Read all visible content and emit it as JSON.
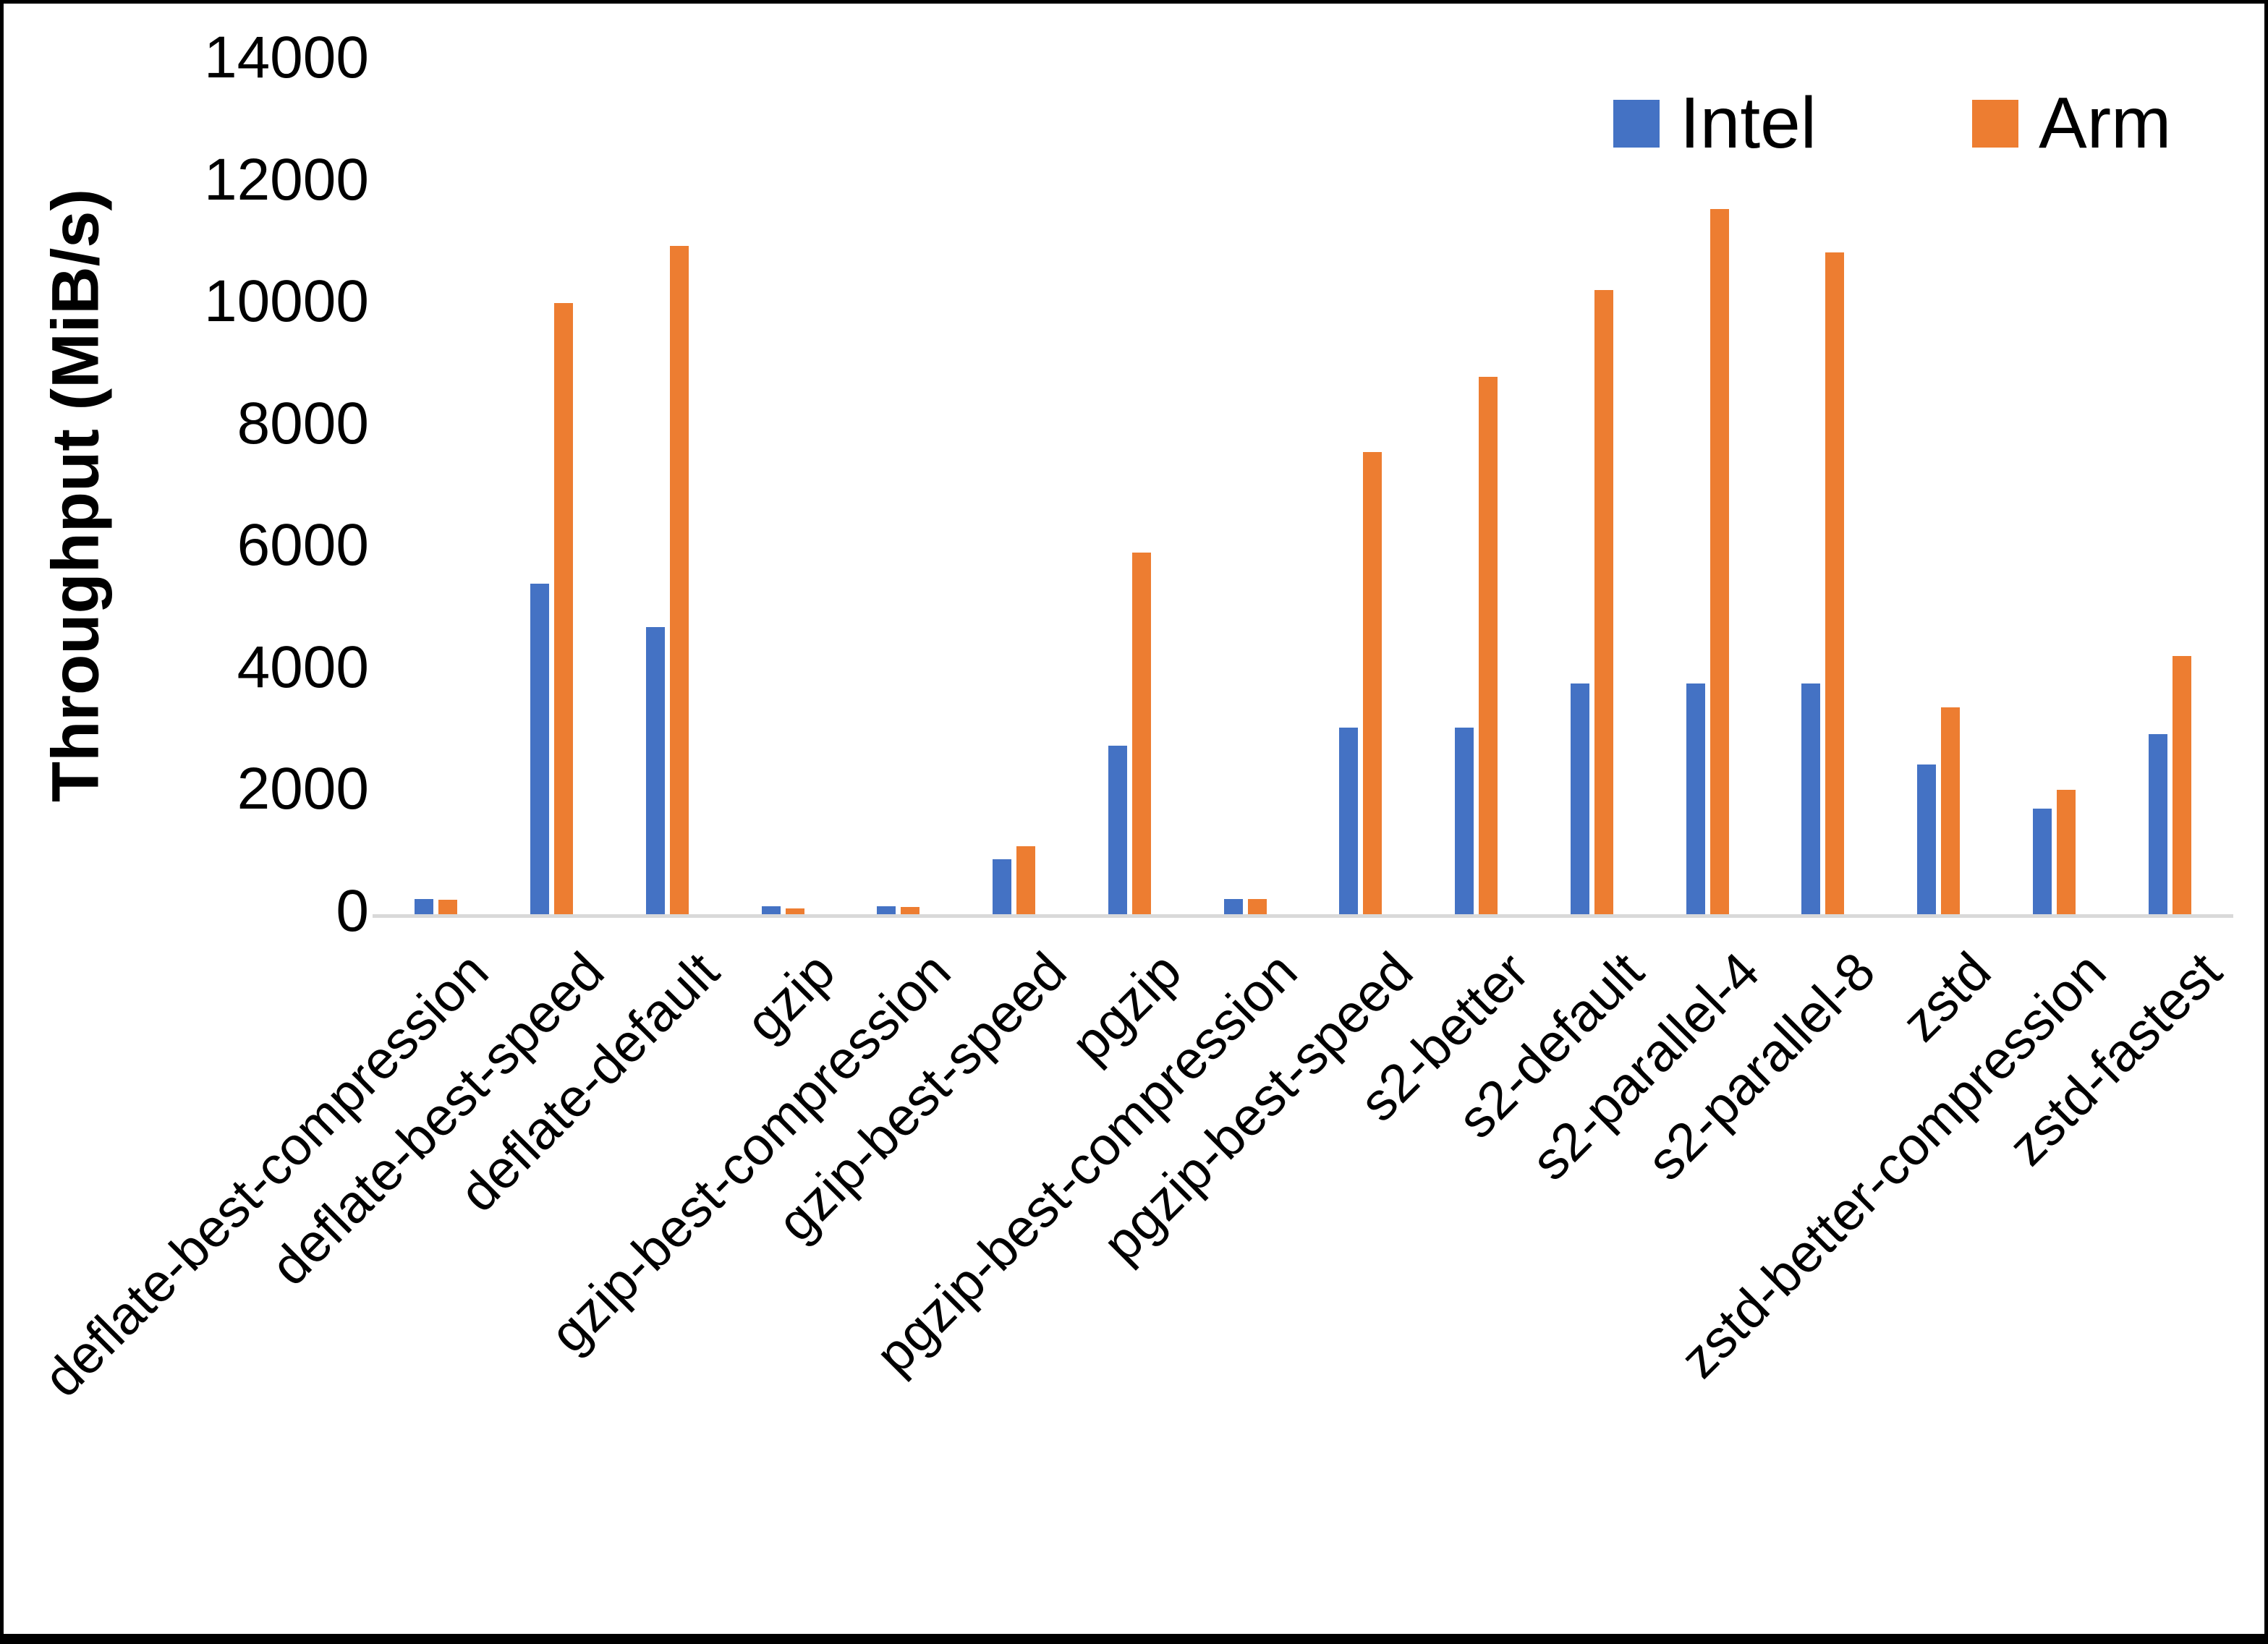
{
  "chart_data": {
    "type": "bar",
    "title": "",
    "xlabel": "",
    "ylabel": "Throughput (MiB/s)",
    "ylim": [
      0,
      14000
    ],
    "yticks": [
      0,
      2000,
      4000,
      6000,
      8000,
      10000,
      12000,
      14000
    ],
    "grid": false,
    "legend_position": "top-right",
    "categories": [
      "deflate-best-compression",
      "deflate-best-speed",
      "deflate-default",
      "gzip",
      "gzip-best-compression",
      "gzip-best-speed",
      "pgzip",
      "pgzip-best-compression",
      "pgzip-best-speed",
      "s2-better",
      "s2-default",
      "s2-parallel-4",
      "s2-parallel-8",
      "zstd",
      "zstd-better-compression",
      "zstd-fastest"
    ],
    "series": [
      {
        "name": "Intel",
        "color": "#4472C4",
        "values": [
          250,
          5420,
          4710,
          130,
          130,
          900,
          2760,
          250,
          3060,
          3060,
          3780,
          3780,
          3780,
          2460,
          1730,
          2950
        ]
      },
      {
        "name": "Arm",
        "color": "#ED7D31",
        "values": [
          240,
          10030,
          10960,
          100,
          115,
          1120,
          5930,
          250,
          7580,
          8810,
          10240,
          11570,
          10860,
          3390,
          2040,
          4230
        ]
      }
    ],
    "colors": {
      "axis_line": "#D9D9D9",
      "text": "#000000",
      "background": "#FFFFFF",
      "frame_border": "#000000"
    }
  }
}
